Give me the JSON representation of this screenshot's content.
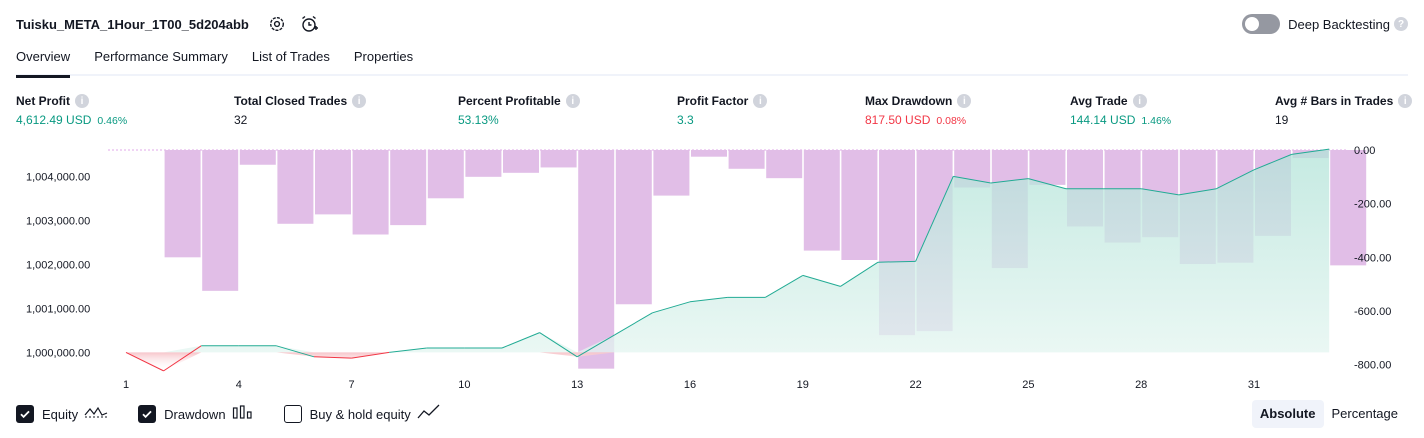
{
  "header": {
    "title": "Tuisku_META_1Hour_1T00_5d204abb",
    "deep_backtesting_label": "Deep Backtesting"
  },
  "tabs": [
    {
      "label": "Overview",
      "active": true
    },
    {
      "label": "Performance Summary",
      "active": false
    },
    {
      "label": "List of Trades",
      "active": false
    },
    {
      "label": "Properties",
      "active": false
    }
  ],
  "metrics": {
    "net_profit": {
      "title": "Net Profit",
      "value": "4,612.49 USD",
      "pct": "0.46%"
    },
    "total_closed_trades": {
      "title": "Total Closed Trades",
      "value": "32"
    },
    "percent_profitable": {
      "title": "Percent Profitable",
      "value": "53.13%"
    },
    "profit_factor": {
      "title": "Profit Factor",
      "value": "3.3"
    },
    "max_drawdown": {
      "title": "Max Drawdown",
      "value": "817.50 USD",
      "pct": "0.08%"
    },
    "avg_trade": {
      "title": "Avg Trade",
      "value": "144.14 USD",
      "pct": "1.46%"
    },
    "avg_bars": {
      "title": "Avg # Bars in Trades",
      "value": "19"
    }
  },
  "legend": {
    "equity": {
      "label": "Equity",
      "checked": true
    },
    "drawdown": {
      "label": "Drawdown",
      "checked": true
    },
    "buy_hold": {
      "label": "Buy & hold equity",
      "checked": false
    }
  },
  "mode": {
    "absolute": "Absolute",
    "percentage": "Percentage",
    "selected": "Absolute"
  },
  "colors": {
    "green": "#089981",
    "red": "#f23645",
    "drawdown_bar": "#e1bee7",
    "equity_line": "#22ab94",
    "equity_fill": "#d6f0ea"
  },
  "chart_data": {
    "type": "line",
    "x": [
      1,
      2,
      3,
      4,
      5,
      6,
      7,
      8,
      9,
      10,
      11,
      12,
      13,
      14,
      15,
      16,
      17,
      18,
      19,
      20,
      21,
      22,
      23,
      24,
      25,
      26,
      27,
      28,
      29,
      30,
      31,
      32,
      33
    ],
    "x_tick_labels": [
      "1",
      "4",
      "7",
      "10",
      "13",
      "16",
      "19",
      "22",
      "25",
      "28",
      "31"
    ],
    "series": [
      {
        "name": "Equity",
        "axis": "left",
        "values": [
          1000000,
          999580,
          1000150,
          1000150,
          1000150,
          999900,
          999870,
          1000000,
          1000100,
          1000100,
          1000100,
          1000450,
          999900,
          1000400,
          1000900,
          1001150,
          1001250,
          1001250,
          1001750,
          1001500,
          1002050,
          1002070,
          1004000,
          1003850,
          1003950,
          1003720,
          1003720,
          1003720,
          1003580,
          1003720,
          1004150,
          1004500,
          1004620
        ]
      },
      {
        "name": "Drawdown",
        "axis": "right",
        "type": "bar",
        "values": [
          0,
          -400,
          -525,
          -55,
          -275,
          -240,
          -315,
          -280,
          -180,
          -100,
          -85,
          -65,
          -815,
          -575,
          -170,
          -25,
          -70,
          -105,
          -375,
          -410,
          -690,
          -675,
          -140,
          -440,
          -130,
          -285,
          -345,
          -325,
          -425,
          -420,
          -320,
          -30,
          -430
        ]
      }
    ],
    "y_left_ticks": [
      "1,000,000.00",
      "1,001,000.00",
      "1,002,000.00",
      "1,003,000.00",
      "1,004,000.00"
    ],
    "y_right_ticks": [
      "0.00",
      "-200.00",
      "-400.00",
      "-600.00",
      "-800.00"
    ],
    "y_left_range": [
      999600,
      1004600
    ],
    "y_right_range": [
      -820,
      0
    ]
  }
}
